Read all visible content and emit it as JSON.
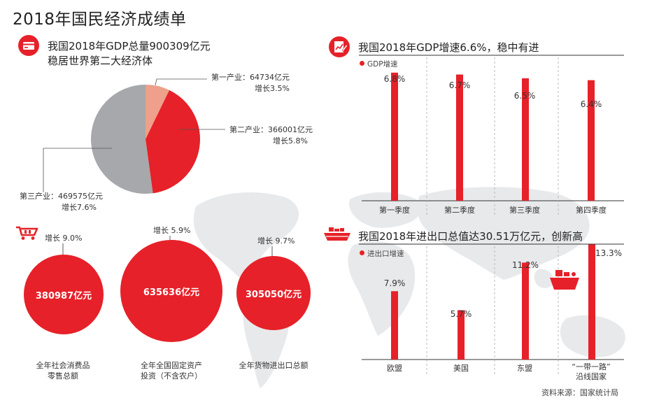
{
  "title": "2018年国民经济成绩单",
  "gdp_section": {
    "title_line1": "我国2018年GDP总量900309亿元",
    "title_line2": "稳居世界第二大经济体",
    "icon": "credit-card-icon",
    "segments": [
      {
        "label": "第一产业：64734亿元",
        "growth": "增长3.5%"
      },
      {
        "label": "第二产业：366001亿元",
        "growth": "增长5.8%"
      },
      {
        "label": "第三产业：469575亿元",
        "growth": "增长7.6%"
      }
    ]
  },
  "quarterly_section": {
    "title": "我国2018年GDP增速6.6%，稳中有进",
    "icon": "chart-document-icon",
    "legend": "GDP增速",
    "value_labels": [
      "6.8%",
      "6.7%",
      "6.5%",
      "6.4%"
    ]
  },
  "trade_section": {
    "title": "我国2018年进出口总值达30.51万亿元，创新高",
    "icon": "cargo-ship-icon",
    "legend": "进出口增速",
    "value_labels": [
      "7.9%",
      "5.7%",
      "11.2%",
      "13.3%"
    ],
    "category_labels": [
      "欧盟",
      "美国",
      "东盟",
      "“一带一路”\n沿线国家"
    ]
  },
  "bubbles_section": {
    "icon": "shopping-cart-icon",
    "items": [
      {
        "value": "380987亿元",
        "growth": "增长 9.0%",
        "caption_line1": "全年社会消费品",
        "caption_line2": "零售总额"
      },
      {
        "value": "635636亿元",
        "growth": "增长 5.9%",
        "caption_line1": "全年全国固定资产",
        "caption_line2": "投资（不含农户）"
      },
      {
        "value": "305050亿元",
        "growth": "增长 9.7%",
        "caption_line1": "全年货物进出口总额",
        "caption_line2": ""
      }
    ]
  },
  "source": "资料来源：国家统计局",
  "colors": {
    "accent": "#e62129",
    "pie_primary": "#eea08a",
    "pie_tertiary": "#a7a8ab",
    "map": "#e8e9eb"
  },
  "chart_data": [
    {
      "type": "pie",
      "title": "我国2018年GDP总量900309亿元",
      "categories": [
        "第一产业",
        "第二产业",
        "第三产业"
      ],
      "values": [
        64734,
        366001,
        469575
      ],
      "unit": "亿元",
      "growth_percent": [
        3.5,
        5.8,
        7.6
      ]
    },
    {
      "type": "bar",
      "title": "我国2018年GDP增速6.6%，稳中有进",
      "series": [
        {
          "name": "GDP增速",
          "values": [
            6.8,
            6.7,
            6.5,
            6.4
          ]
        }
      ],
      "categories": [
        "第一季度",
        "第二季度",
        "第三季度",
        "第四季度"
      ],
      "ylabel": "%",
      "ylim": [
        0,
        7.5
      ]
    },
    {
      "type": "bar",
      "title": "我国2018年进出口总值达30.51万亿元，创新高",
      "series": [
        {
          "name": "进出口增速",
          "values": [
            7.9,
            5.7,
            11.2,
            13.3
          ]
        }
      ],
      "categories": [
        "欧盟",
        "美国",
        "东盟",
        "“一带一路”沿线国家"
      ],
      "ylabel": "%",
      "ylim": [
        0,
        13.5
      ]
    },
    {
      "type": "bubble",
      "categories": [
        "全年社会消费品零售总额",
        "全年全国固定资产投资（不含农户）",
        "全年货物进出口总额"
      ],
      "values": [
        380987,
        635636,
        305050
      ],
      "unit": "亿元",
      "growth_percent": [
        9.0,
        5.9,
        9.7
      ]
    }
  ]
}
